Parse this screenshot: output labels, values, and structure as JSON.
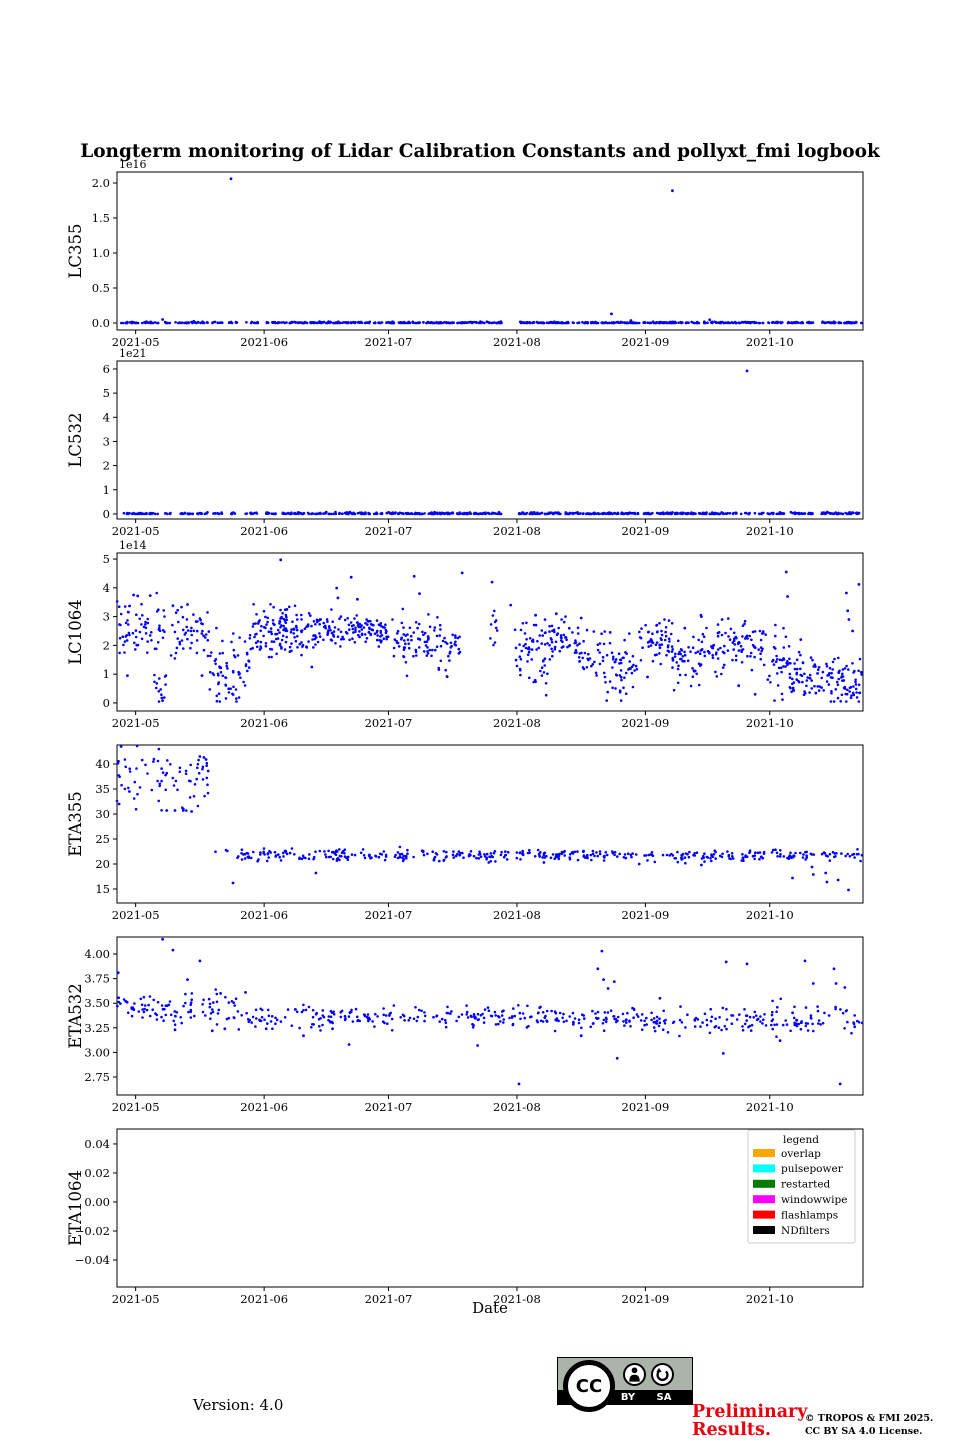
{
  "title": "Longterm monitoring of Lidar Calibration Constants and pollyxt_fmi logbook",
  "figure": {
    "background": "#ffffff",
    "marker_color": "#0000ff",
    "axis_color": "#000000"
  },
  "x_axis": {
    "xlabel": "Date",
    "epoch_day0": "2021-04-27",
    "xlim": [
      0,
      180
    ],
    "ticks": [
      {
        "day": 4.5,
        "label": "2021-05"
      },
      {
        "day": 35.5,
        "label": "2021-06"
      },
      {
        "day": 65.5,
        "label": "2021-07"
      },
      {
        "day": 96.5,
        "label": "2021-08"
      },
      {
        "day": 127.5,
        "label": "2021-09"
      },
      {
        "day": 157.5,
        "label": "2021-10"
      }
    ]
  },
  "legend": {
    "title": "legend",
    "entries": [
      {
        "label": "overlap",
        "color": "#ffa500"
      },
      {
        "label": "pulsepower",
        "color": "#00ffff"
      },
      {
        "label": "restarted",
        "color": "#007d00"
      },
      {
        "label": "windowwipe",
        "color": "#ff00ff"
      },
      {
        "label": "flashlamps",
        "color": "#ff0000"
      },
      {
        "label": "NDfilters",
        "color": "#000000"
      }
    ]
  },
  "chart_data": [
    {
      "type": "scatter",
      "ylabel": "LC355",
      "offset_label": "1e16",
      "ylim": [
        -0.1,
        2.157
      ],
      "yticks": [
        {
          "v": 0.0,
          "label": "0.0"
        },
        {
          "v": 0.5,
          "label": "0.5"
        },
        {
          "v": 1.0,
          "label": "1.0"
        },
        {
          "v": 1.5,
          "label": "1.5"
        },
        {
          "v": 2.0,
          "label": "2.0"
        }
      ],
      "segments": [
        [
          1,
          10,
          36,
          0.004,
          0.007,
          0.0005,
          0.06
        ],
        [
          11.5,
          13,
          6,
          0.004,
          0.007,
          0.0005,
          0.06
        ],
        [
          14,
          22,
          30,
          0.004,
          0.007,
          0.0005,
          0.06
        ],
        [
          23,
          25.5,
          9,
          0.004,
          0.007,
          0.0005,
          0.06
        ],
        [
          27,
          29,
          8,
          0.004,
          0.007,
          0.0005,
          0.06
        ],
        [
          31,
          34,
          10,
          0.004,
          0.007,
          0.0005,
          0.06
        ],
        [
          36,
          61,
          110,
          0.004,
          0.007,
          0.0005,
          0.06
        ],
        [
          62,
          64,
          8,
          0.004,
          0.007,
          0.0005,
          0.06
        ],
        [
          65,
          93,
          140,
          0.004,
          0.007,
          0.0005,
          0.06
        ],
        [
          97,
          126,
          140,
          0.004,
          0.007,
          0.0005,
          0.06
        ],
        [
          127,
          156,
          130,
          0.004,
          0.007,
          0.0005,
          0.06
        ],
        [
          157,
          168,
          45,
          0.004,
          0.007,
          0.0005,
          0.06
        ],
        [
          170,
          179.7,
          50,
          0.004,
          0.007,
          0.0005,
          0.06
        ]
      ],
      "outliers": [
        [
          27.5,
          2.06
        ],
        [
          134,
          1.89
        ],
        [
          11,
          0.05
        ],
        [
          119.3,
          0.13
        ],
        [
          124,
          0.035
        ],
        [
          143,
          0.045
        ]
      ]
    },
    {
      "type": "scatter",
      "ylabel": "LC532",
      "offset_label": "1e21",
      "ylim": [
        -0.21,
        6.33
      ],
      "yticks": [
        {
          "v": 0,
          "label": "0"
        },
        {
          "v": 1,
          "label": "1"
        },
        {
          "v": 2,
          "label": "2"
        },
        {
          "v": 3,
          "label": "3"
        },
        {
          "v": 4,
          "label": "4"
        },
        {
          "v": 5,
          "label": "5"
        },
        {
          "v": 6,
          "label": "6"
        }
      ],
      "segments": [
        [
          1,
          10,
          36,
          0.015,
          0.025,
          0.002,
          0.2
        ],
        [
          11.5,
          13,
          6,
          0.015,
          0.025,
          0.002,
          0.2
        ],
        [
          14,
          22,
          30,
          0.015,
          0.025,
          0.002,
          0.2
        ],
        [
          23,
          25.5,
          9,
          0.015,
          0.025,
          0.002,
          0.2
        ],
        [
          27,
          29,
          8,
          0.015,
          0.025,
          0.002,
          0.2
        ],
        [
          31,
          34,
          10,
          0.015,
          0.025,
          0.002,
          0.2
        ],
        [
          36,
          61,
          110,
          0.015,
          0.025,
          0.002,
          0.2
        ],
        [
          62,
          64,
          8,
          0.015,
          0.025,
          0.002,
          0.2
        ],
        [
          65,
          93,
          140,
          0.015,
          0.025,
          0.002,
          0.2
        ],
        [
          97,
          126,
          140,
          0.015,
          0.025,
          0.002,
          0.2
        ],
        [
          127,
          156,
          130,
          0.015,
          0.025,
          0.002,
          0.2
        ],
        [
          157,
          168,
          45,
          0.015,
          0.025,
          0.002,
          0.2
        ],
        [
          170,
          179.7,
          50,
          0.015,
          0.025,
          0.002,
          0.2
        ]
      ],
      "outliers": [
        [
          152,
          5.92
        ]
      ]
    },
    {
      "type": "scatter",
      "ylabel": "LC1064",
      "offset_label": "1e14",
      "ylim": [
        -0.28,
        5.21
      ],
      "yticks": [
        {
          "v": 0,
          "label": "0"
        },
        {
          "v": 1,
          "label": "1"
        },
        {
          "v": 2,
          "label": "2"
        },
        {
          "v": 3,
          "label": "3"
        },
        {
          "v": 4,
          "label": "4"
        },
        {
          "v": 5,
          "label": "5"
        }
      ],
      "segments": [
        [
          0,
          3,
          10,
          3.0,
          0.45
        ],
        [
          0.5,
          12,
          55,
          2.6,
          0.45
        ],
        [
          9,
          12.5,
          14,
          0.8,
          0.55,
          0.05,
          2.0
        ],
        [
          13,
          22,
          48,
          2.35,
          0.5
        ],
        [
          22,
          32,
          55,
          1.3,
          0.55,
          0.05,
          2.6
        ],
        [
          24,
          30,
          14,
          0.45,
          0.3,
          0.05,
          1.2
        ],
        [
          32,
          45,
          120,
          2.5,
          0.45
        ],
        [
          45,
          58,
          85,
          2.55,
          0.35
        ],
        [
          58,
          65,
          60,
          2.5,
          0.25
        ],
        [
          65,
          78,
          80,
          2.3,
          0.5
        ],
        [
          78,
          83,
          28,
          2.0,
          0.4
        ],
        [
          90,
          92,
          10,
          2.9,
          0.6
        ],
        [
          96,
          104,
          60,
          1.7,
          0.55,
          0.1,
          3.2
        ],
        [
          104,
          110,
          40,
          2.3,
          0.45
        ],
        [
          110,
          118,
          45,
          1.6,
          0.5,
          0.1,
          3.0
        ],
        [
          118,
          126,
          50,
          1.05,
          0.5,
          0.08,
          2.5
        ],
        [
          126,
          134,
          55,
          2.2,
          0.4
        ],
        [
          134,
          140,
          40,
          1.35,
          0.5,
          0.1,
          2.7
        ],
        [
          140,
          148,
          50,
          1.85,
          0.5
        ],
        [
          148,
          156,
          55,
          2.1,
          0.45
        ],
        [
          156,
          162,
          35,
          1.35,
          0.55,
          0.08,
          2.8
        ],
        [
          162,
          170,
          60,
          0.95,
          0.45,
          0.08,
          2.4
        ],
        [
          170,
          179.7,
          75,
          0.75,
          0.45,
          0.05,
          2.2
        ]
      ],
      "outliers": [
        [
          2.5,
          0.95
        ],
        [
          4,
          3.75
        ],
        [
          5,
          3.72
        ],
        [
          8,
          3.73
        ],
        [
          11,
          0.08
        ],
        [
          13.5,
          3.38
        ],
        [
          17,
          3.42
        ],
        [
          20.5,
          0.95
        ],
        [
          39.5,
          4.97
        ],
        [
          41,
          3.25
        ],
        [
          47,
          1.25
        ],
        [
          53,
          3.99
        ],
        [
          53.3,
          3.65
        ],
        [
          56.5,
          4.37
        ],
        [
          58,
          3.6
        ],
        [
          71.7,
          4.4
        ],
        [
          73,
          3.8
        ],
        [
          83.3,
          4.52
        ],
        [
          90.5,
          4.2
        ],
        [
          95,
          3.4
        ],
        [
          101,
          3.05
        ],
        [
          106,
          3.1
        ],
        [
          112,
          2.95
        ],
        [
          119,
          2.45
        ],
        [
          128,
          0.9
        ],
        [
          137,
          2.6
        ],
        [
          141,
          3.0
        ],
        [
          146,
          2.9
        ],
        [
          150,
          0.6
        ],
        [
          154,
          0.3
        ],
        [
          161.5,
          4.55
        ],
        [
          161.8,
          3.7
        ],
        [
          165,
          2.2
        ],
        [
          176,
          3.82
        ],
        [
          176.3,
          3.2
        ],
        [
          176.6,
          2.9
        ],
        [
          177.5,
          2.5
        ],
        [
          179,
          4.12
        ]
      ]
    },
    {
      "type": "scatter",
      "ylabel": "ETA355",
      "offset_label": null,
      "ylim": [
        12.2,
        43.8
      ],
      "yticks": [
        {
          "v": 15,
          "label": "15"
        },
        {
          "v": 20,
          "label": "20"
        },
        {
          "v": 25,
          "label": "25"
        },
        {
          "v": 30,
          "label": "30"
        },
        {
          "v": 35,
          "label": "35"
        },
        {
          "v": 40,
          "label": "40"
        }
      ],
      "segments": [
        [
          0,
          22,
          72,
          37.0,
          2.8,
          30.3,
          43.6
        ],
        [
          23.5,
          27,
          3,
          22.4,
          0.3
        ],
        [
          29,
          60,
          95,
          21.9,
          0.6,
          20.2,
          23.7
        ],
        [
          60,
          95,
          100,
          21.8,
          0.55,
          20.3,
          23.6
        ],
        [
          96,
          126,
          90,
          21.9,
          0.5,
          20.4,
          23.5
        ],
        [
          127,
          157,
          85,
          21.6,
          0.6,
          20.0,
          23.3
        ],
        [
          157,
          180,
          55,
          21.9,
          0.6,
          20.3,
          23.0
        ]
      ],
      "outliers": [
        [
          1,
          43.5
        ],
        [
          0.5,
          32.0
        ],
        [
          3,
          34.5
        ],
        [
          12,
          30.7
        ],
        [
          14,
          30.7
        ],
        [
          16,
          30.7
        ],
        [
          18,
          30.5
        ],
        [
          20,
          41.5
        ],
        [
          21,
          41.3
        ],
        [
          21.5,
          40.9
        ],
        [
          22,
          38.6
        ],
        [
          28,
          16.2
        ],
        [
          48,
          18.2
        ],
        [
          103,
          20.3
        ],
        [
          126,
          20.0
        ],
        [
          141,
          19.8
        ],
        [
          163,
          17.2
        ],
        [
          167.7,
          19.4
        ],
        [
          168,
          17.9
        ],
        [
          171,
          18.2
        ],
        [
          171.3,
          16.4
        ],
        [
          174,
          16.8
        ],
        [
          176.5,
          14.8
        ]
      ]
    },
    {
      "type": "scatter",
      "ylabel": "ETA532",
      "offset_label": null,
      "ylim": [
        2.567,
        4.173
      ],
      "yticks": [
        {
          "v": 2.75,
          "label": "2.75"
        },
        {
          "v": 3.0,
          "label": "3.00"
        },
        {
          "v": 3.25,
          "label": "3.25"
        },
        {
          "v": 3.5,
          "label": "3.50"
        },
        {
          "v": 3.75,
          "label": "3.75"
        },
        {
          "v": 4.0,
          "label": "4.00"
        }
      ],
      "segments": [
        [
          0,
          8,
          28,
          3.47,
          0.055
        ],
        [
          8,
          30,
          68,
          3.43,
          0.08,
          3.2,
          3.72
        ],
        [
          30,
          60,
          85,
          3.38,
          0.06,
          3.15,
          3.62
        ],
        [
          60,
          96,
          100,
          3.36,
          0.05,
          3.2,
          3.56
        ],
        [
          96,
          127,
          95,
          3.35,
          0.06,
          3.17,
          3.56
        ],
        [
          127,
          157,
          85,
          3.33,
          0.065,
          3.15,
          3.55
        ],
        [
          157,
          180,
          65,
          3.34,
          0.08,
          3.16,
          3.6
        ]
      ],
      "outliers": [
        [
          0.3,
          3.81
        ],
        [
          11,
          4.15
        ],
        [
          13.5,
          4.04
        ],
        [
          20,
          3.93
        ],
        [
          17,
          3.74
        ],
        [
          25,
          3.6
        ],
        [
          14,
          3.23
        ],
        [
          23,
          3.22
        ],
        [
          26,
          3.24
        ],
        [
          31,
          3.61
        ],
        [
          36,
          3.24
        ],
        [
          45,
          3.17
        ],
        [
          52,
          3.24
        ],
        [
          56,
          3.08
        ],
        [
          87,
          3.07
        ],
        [
          97,
          2.68
        ],
        [
          112,
          3.17
        ],
        [
          116,
          3.85
        ],
        [
          117,
          4.03
        ],
        [
          117.4,
          3.74
        ],
        [
          118.5,
          3.65
        ],
        [
          120,
          3.72
        ],
        [
          120.7,
          2.94
        ],
        [
          131,
          3.55
        ],
        [
          146.3,
          2.99
        ],
        [
          147,
          3.92
        ],
        [
          152,
          3.9
        ],
        [
          160,
          3.12
        ],
        [
          166,
          3.93
        ],
        [
          168,
          3.7
        ],
        [
          173,
          3.85
        ],
        [
          173.5,
          3.7
        ],
        [
          174.5,
          2.68
        ],
        [
          175.6,
          3.66
        ],
        [
          178,
          3.26
        ]
      ]
    },
    {
      "type": "scatter",
      "ylabel": "ETA1064",
      "offset_label": null,
      "ylim": [
        -0.0586,
        0.0503
      ],
      "yticks": [
        {
          "v": -0.04,
          "label": "−0.04"
        },
        {
          "v": -0.02,
          "label": "−0.02"
        },
        {
          "v": 0.0,
          "label": "0.00"
        },
        {
          "v": 0.02,
          "label": "0.02"
        },
        {
          "v": 0.04,
          "label": "0.04"
        }
      ],
      "segments": [],
      "outliers": []
    }
  ],
  "footer": {
    "version": "Version: 4.0",
    "preliminary_line1": "Preliminary",
    "preliminary_line2": "Results.",
    "copyright_line1": "© TROPOS & FMI 2025.",
    "copyright_line2": "CC BY SA 4.0 License.",
    "badge": {
      "cc_label": "CC",
      "by_label": "BY",
      "sa_label": "SA"
    }
  }
}
